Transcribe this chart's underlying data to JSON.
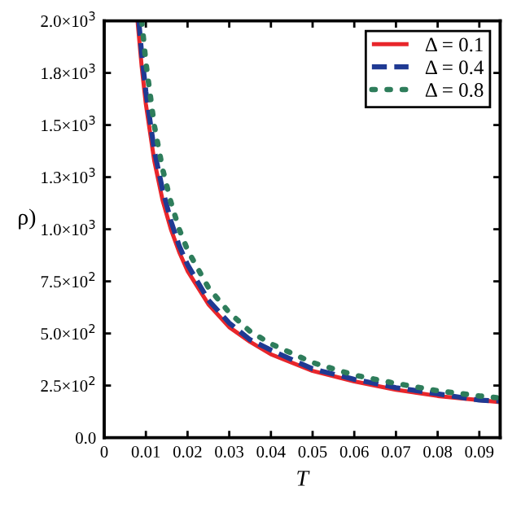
{
  "chart_data": {
    "type": "line",
    "xlabel": "T",
    "ylabel": "ρ)",
    "xlim": [
      0,
      0.095
    ],
    "ylim": [
      0,
      2000
    ],
    "xticks": [
      0,
      0.01,
      0.02,
      0.03,
      0.04,
      0.05,
      0.06,
      0.07,
      0.08,
      0.09
    ],
    "yticks": [
      {
        "value": 0,
        "label": "0.0"
      },
      {
        "value": 250,
        "label": "2.5×10$^{2}$"
      },
      {
        "value": 500,
        "label": "5.0×10$^{2}$"
      },
      {
        "value": 750,
        "label": "7.5×10$^{2}$"
      },
      {
        "value": 1000,
        "label": "1.0×10$^{3}$"
      },
      {
        "value": 1250,
        "label": "1.3×10$^{3}$"
      },
      {
        "value": 1500,
        "label": "1.5×10$^{3}$"
      },
      {
        "value": 1750,
        "label": "1.8×10$^{3}$"
      },
      {
        "value": 2000,
        "label": "2.0×10$^{3}$"
      }
    ],
    "grid": false,
    "legend": "top right",
    "series": [
      {
        "name": "Δ = 0.1",
        "color": "#e8262b",
        "line_style": "solid",
        "x": [
          0.008,
          0.009,
          0.01,
          0.012,
          0.014,
          0.016,
          0.018,
          0.02,
          0.025,
          0.03,
          0.035,
          0.04,
          0.05,
          0.06,
          0.07,
          0.08,
          0.09,
          0.095
        ],
        "values": [
          2000,
          1780,
          1600,
          1330,
          1140,
          1000,
          890,
          800,
          640,
          530,
          460,
          400,
          320,
          270,
          230,
          200,
          180,
          170
        ]
      },
      {
        "name": "Δ = 0.4",
        "color": "#1f3a93",
        "line_style": "dashed",
        "x": [
          0.0083,
          0.009,
          0.01,
          0.012,
          0.014,
          0.016,
          0.018,
          0.02,
          0.025,
          0.03,
          0.035,
          0.04,
          0.05,
          0.06,
          0.07,
          0.08,
          0.09,
          0.095
        ],
        "values": [
          2000,
          1840,
          1660,
          1380,
          1190,
          1040,
          920,
          830,
          660,
          550,
          470,
          420,
          330,
          280,
          240,
          210,
          180,
          175
        ]
      },
      {
        "name": "Δ = 0.8",
        "color": "#2e7d5b",
        "line_style": "dotted",
        "x": [
          0.009,
          0.01,
          0.012,
          0.014,
          0.016,
          0.018,
          0.02,
          0.025,
          0.03,
          0.035,
          0.04,
          0.05,
          0.06,
          0.07,
          0.08,
          0.09,
          0.095
        ],
        "values": [
          2000,
          1800,
          1500,
          1290,
          1130,
          1000,
          900,
          720,
          600,
          510,
          450,
          360,
          300,
          260,
          225,
          200,
          190
        ]
      }
    ]
  }
}
